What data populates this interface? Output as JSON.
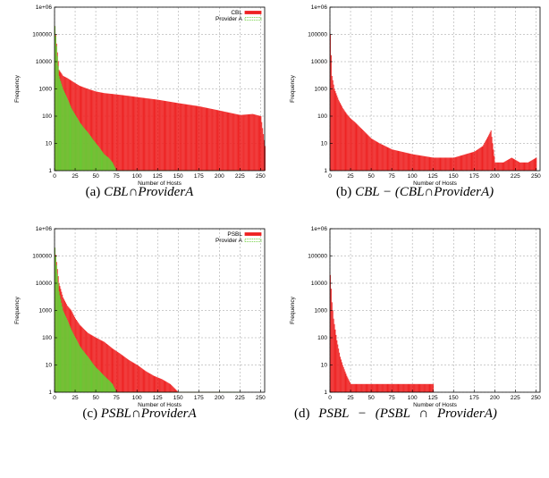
{
  "chart_data": [
    {
      "type": "bar",
      "panel": "a",
      "caption_label": "(a)",
      "caption_math": "CBL∩ProviderA",
      "xlabel": "Number of Hosts",
      "ylabel": "Frequency",
      "xlim": [
        0,
        255
      ],
      "ylim": [
        1,
        1000000
      ],
      "yscale": "log",
      "grid": true,
      "legend_position": "top-right",
      "x_ticks": [
        "0",
        "25",
        "50",
        "75",
        "100",
        "125",
        "150",
        "175",
        "200",
        "225",
        "250"
      ],
      "y_ticks": [
        "1",
        "10",
        "100",
        "1000",
        "10000",
        "100000",
        "1e+06"
      ],
      "series": [
        {
          "name": "CBL",
          "color": "#ee2222",
          "x": [
            0,
            5,
            10,
            15,
            20,
            25,
            30,
            40,
            50,
            60,
            70,
            80,
            90,
            100,
            125,
            150,
            175,
            200,
            225,
            240,
            250,
            255
          ],
          "y": [
            200000,
            5000,
            3000,
            2500,
            2000,
            1600,
            1300,
            1000,
            800,
            700,
            650,
            600,
            550,
            500,
            400,
            300,
            230,
            160,
            110,
            120,
            100,
            8
          ]
        },
        {
          "name": "Provider A",
          "color": "#66cc33",
          "x": [
            0,
            5,
            10,
            20,
            30,
            40,
            50,
            60,
            65,
            70,
            75,
            80,
            90,
            100,
            125,
            150,
            175,
            200,
            225
          ],
          "y": [
            200000,
            3000,
            1000,
            200,
            60,
            25,
            10,
            4,
            3,
            2,
            1,
            1,
            1,
            1,
            1,
            1,
            1,
            1,
            1
          ]
        }
      ]
    },
    {
      "type": "bar",
      "panel": "b",
      "caption_label": "(b)",
      "caption_math": "CBL − (CBL∩ProviderA)",
      "xlabel": "Number of Hosts",
      "ylabel": "Frequency",
      "xlim": [
        0,
        255
      ],
      "ylim": [
        1,
        1000000
      ],
      "yscale": "log",
      "grid": true,
      "x_ticks": [
        "0",
        "25",
        "50",
        "75",
        "100",
        "125",
        "150",
        "175",
        "200",
        "225",
        "250"
      ],
      "y_ticks": [
        "1",
        "10",
        "100",
        "1000",
        "10000",
        "100000",
        "1e+06"
      ],
      "series": [
        {
          "name": "",
          "color": "#ee2222",
          "x": [
            0,
            2,
            5,
            10,
            15,
            20,
            25,
            30,
            40,
            50,
            60,
            75,
            100,
            125,
            150,
            175,
            185,
            190,
            195,
            200,
            210,
            220,
            230,
            240,
            250
          ],
          "y": [
            100000,
            3000,
            1000,
            400,
            200,
            120,
            80,
            60,
            30,
            15,
            10,
            6,
            4,
            3,
            3,
            5,
            8,
            15,
            30,
            2,
            2,
            3,
            2,
            2,
            3
          ]
        }
      ]
    },
    {
      "type": "bar",
      "panel": "c",
      "caption_label": "(c)",
      "caption_math": "PSBL∩ProviderA",
      "xlabel": "Number of Hosts",
      "ylabel": "Frequency",
      "xlim": [
        0,
        255
      ],
      "ylim": [
        1,
        1000000
      ],
      "yscale": "log",
      "grid": true,
      "legend_position": "top-right",
      "x_ticks": [
        "0",
        "25",
        "50",
        "75",
        "100",
        "125",
        "150",
        "175",
        "200",
        "225",
        "250"
      ],
      "y_ticks": [
        "1",
        "10",
        "100",
        "1000",
        "10000",
        "100000",
        "1e+06"
      ],
      "series": [
        {
          "name": "PSBL",
          "color": "#ee2222",
          "x": [
            0,
            5,
            10,
            15,
            20,
            25,
            30,
            40,
            50,
            60,
            70,
            80,
            90,
            100,
            110,
            120,
            130,
            140,
            150,
            175,
            200
          ],
          "y": [
            200000,
            10000,
            3000,
            1500,
            1000,
            500,
            300,
            150,
            100,
            70,
            40,
            25,
            15,
            10,
            6,
            4,
            3,
            2,
            1,
            1,
            1
          ]
        },
        {
          "name": "Provider A",
          "color": "#66cc33",
          "x": [
            0,
            5,
            10,
            20,
            30,
            40,
            50,
            60,
            70,
            75,
            80,
            225
          ],
          "y": [
            200000,
            5000,
            1000,
            200,
            50,
            20,
            8,
            4,
            2,
            1,
            1,
            1
          ]
        }
      ]
    },
    {
      "type": "bar",
      "panel": "d",
      "caption_label": "(d)",
      "caption_math": "PSBL − (PSBL ∩ ProviderA)",
      "xlabel": "Number of Hosts",
      "ylabel": "Frequency",
      "xlim": [
        0,
        255
      ],
      "ylim": [
        1,
        1000000
      ],
      "yscale": "log",
      "grid": true,
      "x_ticks": [
        "0",
        "25",
        "50",
        "75",
        "100",
        "125",
        "150",
        "175",
        "200",
        "225",
        "250"
      ],
      "y_ticks": [
        "1",
        "10",
        "100",
        "1000",
        "10000",
        "100000",
        "1e+06"
      ],
      "series": [
        {
          "name": "",
          "color": "#ee2222",
          "x": [
            0,
            2,
            4,
            6,
            8,
            10,
            12,
            15,
            20,
            25,
            30,
            50,
            60,
            75,
            125
          ],
          "y": [
            20000,
            2000,
            500,
            200,
            80,
            40,
            20,
            10,
            4,
            2,
            2,
            2,
            2,
            2,
            2
          ]
        }
      ]
    }
  ]
}
